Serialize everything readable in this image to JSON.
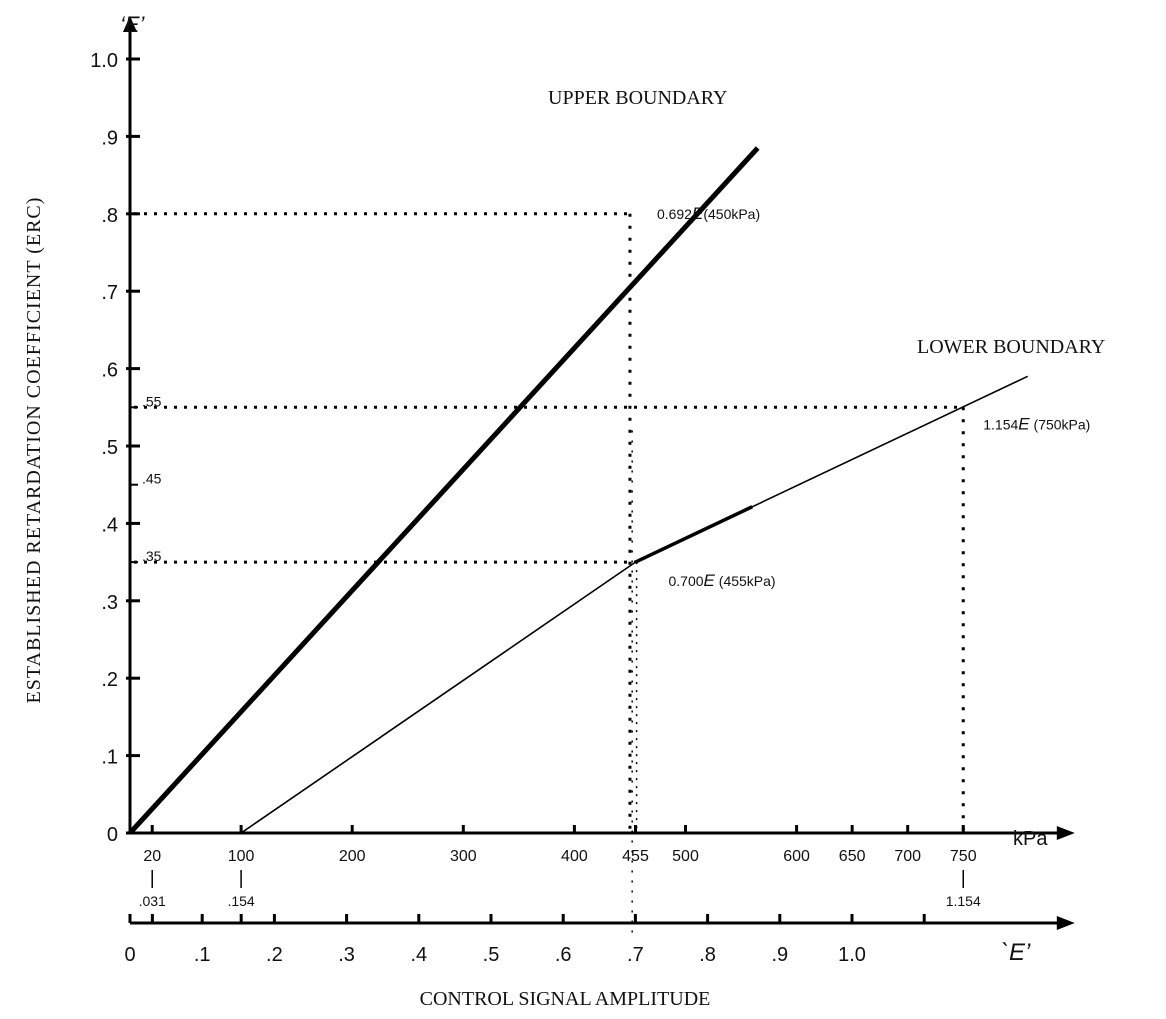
{
  "chart_data": {
    "type": "line",
    "title": "",
    "ylabel": "ESTABLISHED RETARDATION COEFFICIENT (ERC)",
    "y_axis_symbol": "‘E’",
    "xlabel": "CONTROL SIGNAL AMPLITUDE",
    "x_axis_unit": "kPa",
    "x2_axis_symbol": "`E’",
    "ylim": [
      0,
      1.0
    ],
    "xlim_kpa": [
      0,
      800
    ],
    "grid": false,
    "legend": "none",
    "y_ticks": [
      {
        "value": 0,
        "label": "0"
      },
      {
        "value": 0.1,
        "label": ".1"
      },
      {
        "value": 0.2,
        "label": ".2"
      },
      {
        "value": 0.3,
        "label": ".3"
      },
      {
        "value": 0.4,
        "label": ".4"
      },
      {
        "value": 0.5,
        "label": ".5"
      },
      {
        "value": 0.6,
        "label": ".6"
      },
      {
        "value": 0.7,
        "label": ".7"
      },
      {
        "value": 0.8,
        "label": ".8"
      },
      {
        "value": 0.9,
        "label": ".9"
      },
      {
        "value": 1.0,
        "label": "1.0"
      }
    ],
    "y_minor_ticks": [
      {
        "value": 0.35,
        "label": ".35"
      },
      {
        "value": 0.45,
        "label": ".45"
      },
      {
        "value": 0.55,
        "label": ".55"
      }
    ],
    "x_ticks_kpa": [
      20,
      100,
      200,
      300,
      400,
      455,
      500,
      600,
      650,
      700,
      750
    ],
    "x_secondary_labels": [
      {
        "kpa": 20,
        "label": ".031"
      },
      {
        "kpa": 100,
        "label": ".154"
      },
      {
        "kpa": 750,
        "label": "1.154"
      }
    ],
    "x2_ticks": [
      {
        "value": 0,
        "label": "0"
      },
      {
        "value": 0.031,
        "label": ""
      },
      {
        "value": 0.1,
        "label": ".1"
      },
      {
        "value": 0.154,
        "label": ""
      },
      {
        "value": 0.2,
        "label": ".2"
      },
      {
        "value": 0.3,
        "label": ".3"
      },
      {
        "value": 0.4,
        "label": ".4"
      },
      {
        "value": 0.5,
        "label": ".5"
      },
      {
        "value": 0.6,
        "label": ".6"
      },
      {
        "value": 0.7,
        "label": ".7"
      },
      {
        "value": 0.8,
        "label": ".8"
      },
      {
        "value": 0.9,
        "label": ".9"
      },
      {
        "value": 1.0,
        "label": "1.0"
      },
      {
        "value": 1.1,
        "label": ""
      }
    ],
    "series": [
      {
        "name": "UPPER BOUNDARY",
        "style": "thick",
        "points": [
          [
            0,
            0
          ],
          [
            565,
            0.885
          ]
        ]
      },
      {
        "name": "LOWER BOUNDARY",
        "style": "thin",
        "points": [
          [
            100,
            0
          ],
          [
            455,
            0.35
          ],
          [
            808,
            0.59
          ]
        ]
      }
    ],
    "annotations": [
      {
        "label": "0.692",
        "emph": "E",
        "tail": "(450kPa)",
        "kpa": 450,
        "y": 0.8
      },
      {
        "label": "0.700",
        "emph": "E",
        "tail": " (455kPa)",
        "kpa": 455,
        "y": 0.35
      },
      {
        "label": "1.154",
        "emph": "E",
        "tail": " (750kPa)",
        "kpa": 750,
        "y": 0.55
      }
    ]
  }
}
